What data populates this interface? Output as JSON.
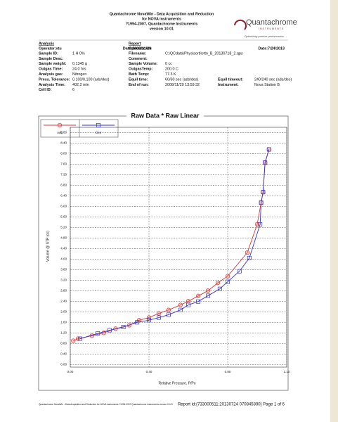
{
  "header": {
    "lines": [
      "Quantachrome NovaWin - Data Acquisition and Reduction",
      "for NOVA instruments",
      "?1994-2007, Quantachrome Instruments",
      "version 10.01"
    ],
    "logo": "Quantachrome",
    "logo_sub": "INSTRUMENTS",
    "tagline": "Optimizing particle performance."
  },
  "analysis": {
    "heading": "Analysis",
    "operator": "Operator:xtu",
    "date": "Date:2008/11/29",
    "fields": [
      {
        "label": "Sample ID:",
        "value": "1 H  0%"
      },
      {
        "label": "Sample Desc:"
      },
      {
        "label": "Sample weight:",
        "value": "0.1345 g"
      },
      {
        "label": "Outgas Time:",
        "value": "24.0 hrs"
      },
      {
        "label": "Analysis gas:",
        "value": "Nitrogen"
      },
      {
        "label": "Press. Tolerance:",
        "value": "0.100/0.100 (ads/des)"
      },
      {
        "label": "Analysis Time:",
        "value": "402.2 min"
      },
      {
        "label": "Cell ID:",
        "value": "6"
      }
    ],
    "middle_fields": [
      {
        "label": "Filename:",
        "value": "C:\\QCdata\\Physisorb\\sttn_B_20130718_2.qps"
      },
      {
        "label": "Comment:"
      },
      {
        "label": "Sample Volume:",
        "value": "0 cc"
      },
      {
        "label": "OutgasTemp:",
        "value": "200.0 C"
      },
      {
        "label": "Bath Temp:",
        "value": "77.3 K"
      },
      {
        "label": "Equil time:",
        "value": "60/60 sec (ads/des)"
      },
      {
        "label": "End of run:",
        "value": "2008/11/29 13:59:32"
      }
    ]
  },
  "report": {
    "heading": "Report",
    "operator": "Operator:xtu",
    "date": "Date:7/24/2013",
    "fields": [
      {
        "label": "Equil timeout:",
        "value": "240/240 sec (ads/des)"
      },
      {
        "label": "Instrument:",
        "value": "Nova Station B"
      }
    ]
  },
  "chart_data": {
    "type": "line",
    "title": "Raw Data *  Raw Linear",
    "x_label": "Relative Pressure, P/Po",
    "y_label": "Volume @ STP (cc)",
    "xlim": [
      0,
      1.1
    ],
    "ylim": [
      -0.1,
      9.0
    ],
    "grid": true,
    "xticks": [
      {
        "value": 0,
        "label": "0.00"
      },
      {
        "value": 0.4,
        "label": "0.40"
      },
      {
        "value": 0.8,
        "label": "0.80"
      },
      {
        "value": 1.1,
        "label": "1.10"
      }
    ],
    "yticks": [
      {
        "value": 0,
        "label": "0.00"
      },
      {
        "value": 0.4,
        "label": "0.40"
      },
      {
        "value": 0.8,
        "label": "0.80"
      },
      {
        "value": 1.2,
        "label": "1.20"
      },
      {
        "value": 1.6,
        "label": "1.60"
      },
      {
        "value": 2,
        "label": "2.00"
      },
      {
        "value": 2.4,
        "label": "2.40"
      },
      {
        "value": 2.8,
        "label": "2.80"
      },
      {
        "value": 3.2,
        "label": "3.20"
      },
      {
        "value": 3.6,
        "label": "3.60"
      },
      {
        "value": 4,
        "label": "4.00"
      },
      {
        "value": 4.4,
        "label": "4.40"
      },
      {
        "value": 4.8,
        "label": "4.80"
      },
      {
        "value": 5.2,
        "label": "5.20"
      },
      {
        "value": 5.6,
        "label": "5.60"
      },
      {
        "value": 6,
        "label": "6.00"
      },
      {
        "value": 6.4,
        "label": "6.40"
      },
      {
        "value": 6.8,
        "label": "6.80"
      },
      {
        "value": 7.2,
        "label": "7.20"
      },
      {
        "value": 7.6,
        "label": "7.60"
      },
      {
        "value": 8,
        "label": "8.00"
      },
      {
        "value": 8.4,
        "label": "8.40"
      },
      {
        "value": 8.8,
        "label": "8.80"
      }
    ],
    "series": [
      {
        "name": "Ads",
        "color": "#d23a3a",
        "marker": "circle",
        "x": [
          0.015,
          0.04,
          0.11,
          0.17,
          0.23,
          0.3,
          0.35,
          0.4,
          0.45,
          0.5,
          0.56,
          0.6,
          0.65,
          0.7,
          0.75,
          0.8,
          0.9,
          0.95,
          0.97,
          0.98,
          0.99,
          1.01
        ],
        "values": [
          0.9,
          0.98,
          1.09,
          1.2,
          1.36,
          1.49,
          1.68,
          1.78,
          1.94,
          2.07,
          2.26,
          2.4,
          2.6,
          2.8,
          3.1,
          3.35,
          4.25,
          5.32,
          6.14,
          6.54,
          7.66,
          8.16
        ]
      },
      {
        "name": "Des",
        "color": "#3434c0",
        "marker": "square",
        "x": [
          1.01,
          0.99,
          0.98,
          0.97,
          0.965,
          0.91,
          0.86,
          0.8,
          0.76,
          0.7,
          0.65,
          0.6,
          0.56,
          0.5,
          0.45,
          0.4,
          0.34,
          0.27,
          0.2,
          0.14,
          0.05
        ],
        "values": [
          8.16,
          7.66,
          6.54,
          6.14,
          5.32,
          4.04,
          3.54,
          3.14,
          2.87,
          2.61,
          2.39,
          2.26,
          2.07,
          1.89,
          1.78,
          1.68,
          1.6,
          1.42,
          1.3,
          1.18,
          0.98
        ]
      }
    ]
  },
  "footer": {
    "left": "Quantachrome NovaWin - Data Acquisition and Reduction for NOVA instruments ?1994-2007 Quantachrome Instruments version 10.01",
    "right": "Report id:{733000511:20130724 070845890} Page 1 of 6"
  }
}
